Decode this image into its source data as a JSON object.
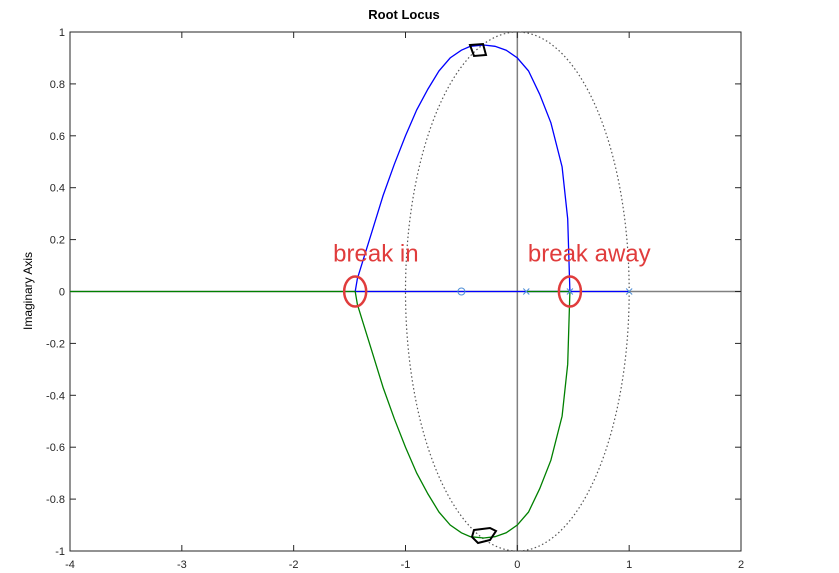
{
  "chart_data": {
    "type": "line",
    "title": "Root Locus",
    "xlabel": "",
    "ylabel": "Imaginary Axis",
    "xlim": [
      -4,
      2
    ],
    "ylim": [
      -1,
      1
    ],
    "xticks": [
      -4,
      -3,
      -2,
      -1,
      0,
      1,
      2
    ],
    "yticks": [
      1,
      0.8,
      0.6,
      0.4,
      0.2,
      0,
      -0.2,
      -0.4,
      -0.6,
      -0.8,
      -1
    ],
    "xtick_labels": [
      "-4",
      "-3",
      "-2",
      "-1",
      "0",
      "1",
      "2"
    ],
    "ytick_labels": [
      "1",
      "0.8",
      "0.6",
      "0.4",
      "0.2",
      "0",
      "-0.2",
      "-0.4",
      "-0.6",
      "-0.8",
      "-1"
    ],
    "grid": false,
    "series": [
      {
        "color": "#0000ff",
        "x": [
          1.0,
          0.6,
          0.47,
          0.45,
          0.4,
          0.3,
          0.2,
          0.1,
          0.0,
          -0.1,
          -0.2,
          -0.3,
          -0.42,
          -0.5,
          -0.6,
          -0.7,
          -0.8,
          -0.9,
          -1.0,
          -1.1,
          -1.2,
          -1.3,
          -1.38,
          -1.43,
          -1.45,
          -0.5,
          0.08,
          0.47
        ],
        "y": [
          0,
          0,
          0,
          0.28,
          0.48,
          0.65,
          0.76,
          0.85,
          0.9,
          0.93,
          0.945,
          0.95,
          0.945,
          0.93,
          0.9,
          0.85,
          0.78,
          0.7,
          0.6,
          0.49,
          0.37,
          0.23,
          0.12,
          0.05,
          0,
          0,
          0,
          0
        ]
      },
      {
        "color": "#008000",
        "x": [
          -4,
          -1.45,
          -1.43,
          -1.38,
          -1.3,
          -1.2,
          -1.1,
          -1.0,
          -0.9,
          -0.8,
          -0.7,
          -0.6,
          -0.5,
          -0.42,
          -0.3,
          -0.2,
          -0.1,
          0.0,
          0.1,
          0.2,
          0.3,
          0.4,
          0.45,
          0.47,
          0.3,
          0.08
        ],
        "y": [
          0,
          0,
          -0.05,
          -0.12,
          -0.23,
          -0.37,
          -0.49,
          -0.6,
          -0.7,
          -0.78,
          -0.85,
          -0.9,
          -0.93,
          -0.945,
          -0.95,
          -0.945,
          -0.93,
          -0.9,
          -0.85,
          -0.76,
          -0.65,
          -0.48,
          -0.28,
          0,
          0,
          0
        ]
      }
    ],
    "unit_circle": {
      "style": "dotted",
      "color": "#555555",
      "center": [
        0,
        0
      ],
      "radius": 1
    },
    "markers": {
      "poles": {
        "symbol": "x",
        "color": "#4f8fd8",
        "x": [
          0.08,
          0.47,
          1.0
        ],
        "y": [
          0,
          0,
          0
        ]
      },
      "zeros": {
        "symbol": "o",
        "color": "#4f8fd8",
        "x": [
          -0.5
        ],
        "y": [
          0
        ]
      }
    },
    "annotations": [
      {
        "text": "break in",
        "color": "#e03c3c",
        "x": -1.45,
        "y": 0
      },
      {
        "text": "break away",
        "color": "#e03c3c",
        "x": 0.47,
        "y": 0
      }
    ]
  }
}
